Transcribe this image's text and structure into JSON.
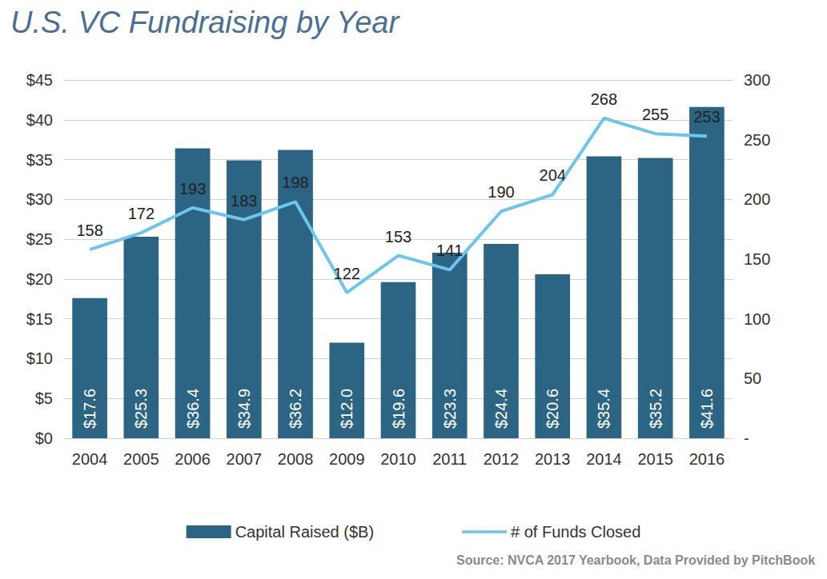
{
  "chart_data": {
    "type": "bar",
    "title": "U.S. VC Fundraising by Year",
    "source": "Source: NVCA 2017 Yearbook, Data Provided by PitchBook",
    "categories": [
      "2004",
      "2005",
      "2006",
      "2007",
      "2008",
      "2009",
      "2010",
      "2011",
      "2012",
      "2013",
      "2014",
      "2015",
      "2016"
    ],
    "series": [
      {
        "name": "Capital Raised ($B)",
        "type": "bar",
        "color": "#2b6583",
        "values": [
          17.6,
          25.3,
          36.4,
          34.9,
          36.2,
          12.0,
          19.6,
          23.3,
          24.4,
          20.6,
          35.4,
          35.2,
          41.6
        ],
        "value_labels": [
          "$17.6",
          "$25.3",
          "$36.4",
          "$34.9",
          "$36.2",
          "$12.0",
          "$19.6",
          "$23.3",
          "$24.4",
          "$20.6",
          "$35.4",
          "$35.2",
          "$41.6"
        ],
        "data_labels": true
      },
      {
        "name": "# of Funds Closed",
        "type": "line",
        "color": "#6cc5ef",
        "axis": "y2",
        "values": [
          158,
          172,
          193,
          183,
          198,
          122,
          153,
          141,
          190,
          204,
          268,
          255,
          253
        ],
        "data_labels": true
      }
    ],
    "ylim": [
      0,
      45
    ],
    "yticks": [
      {
        "value": 0,
        "label": "$0"
      },
      {
        "value": 5,
        "label": "$5"
      },
      {
        "value": 10,
        "label": "$10"
      },
      {
        "value": 15,
        "label": "$15"
      },
      {
        "value": 20,
        "label": "$20"
      },
      {
        "value": 25,
        "label": "$25"
      },
      {
        "value": 30,
        "label": "$30"
      },
      {
        "value": 35,
        "label": "$35"
      },
      {
        "value": 40,
        "label": "$40"
      },
      {
        "value": 45,
        "label": "$45"
      }
    ],
    "y2lim": [
      0,
      300
    ],
    "y2ticks": [
      {
        "value": 0,
        "label": "-"
      },
      50,
      100,
      150,
      200,
      250,
      300
    ],
    "grid": true,
    "legend": "bottom"
  }
}
